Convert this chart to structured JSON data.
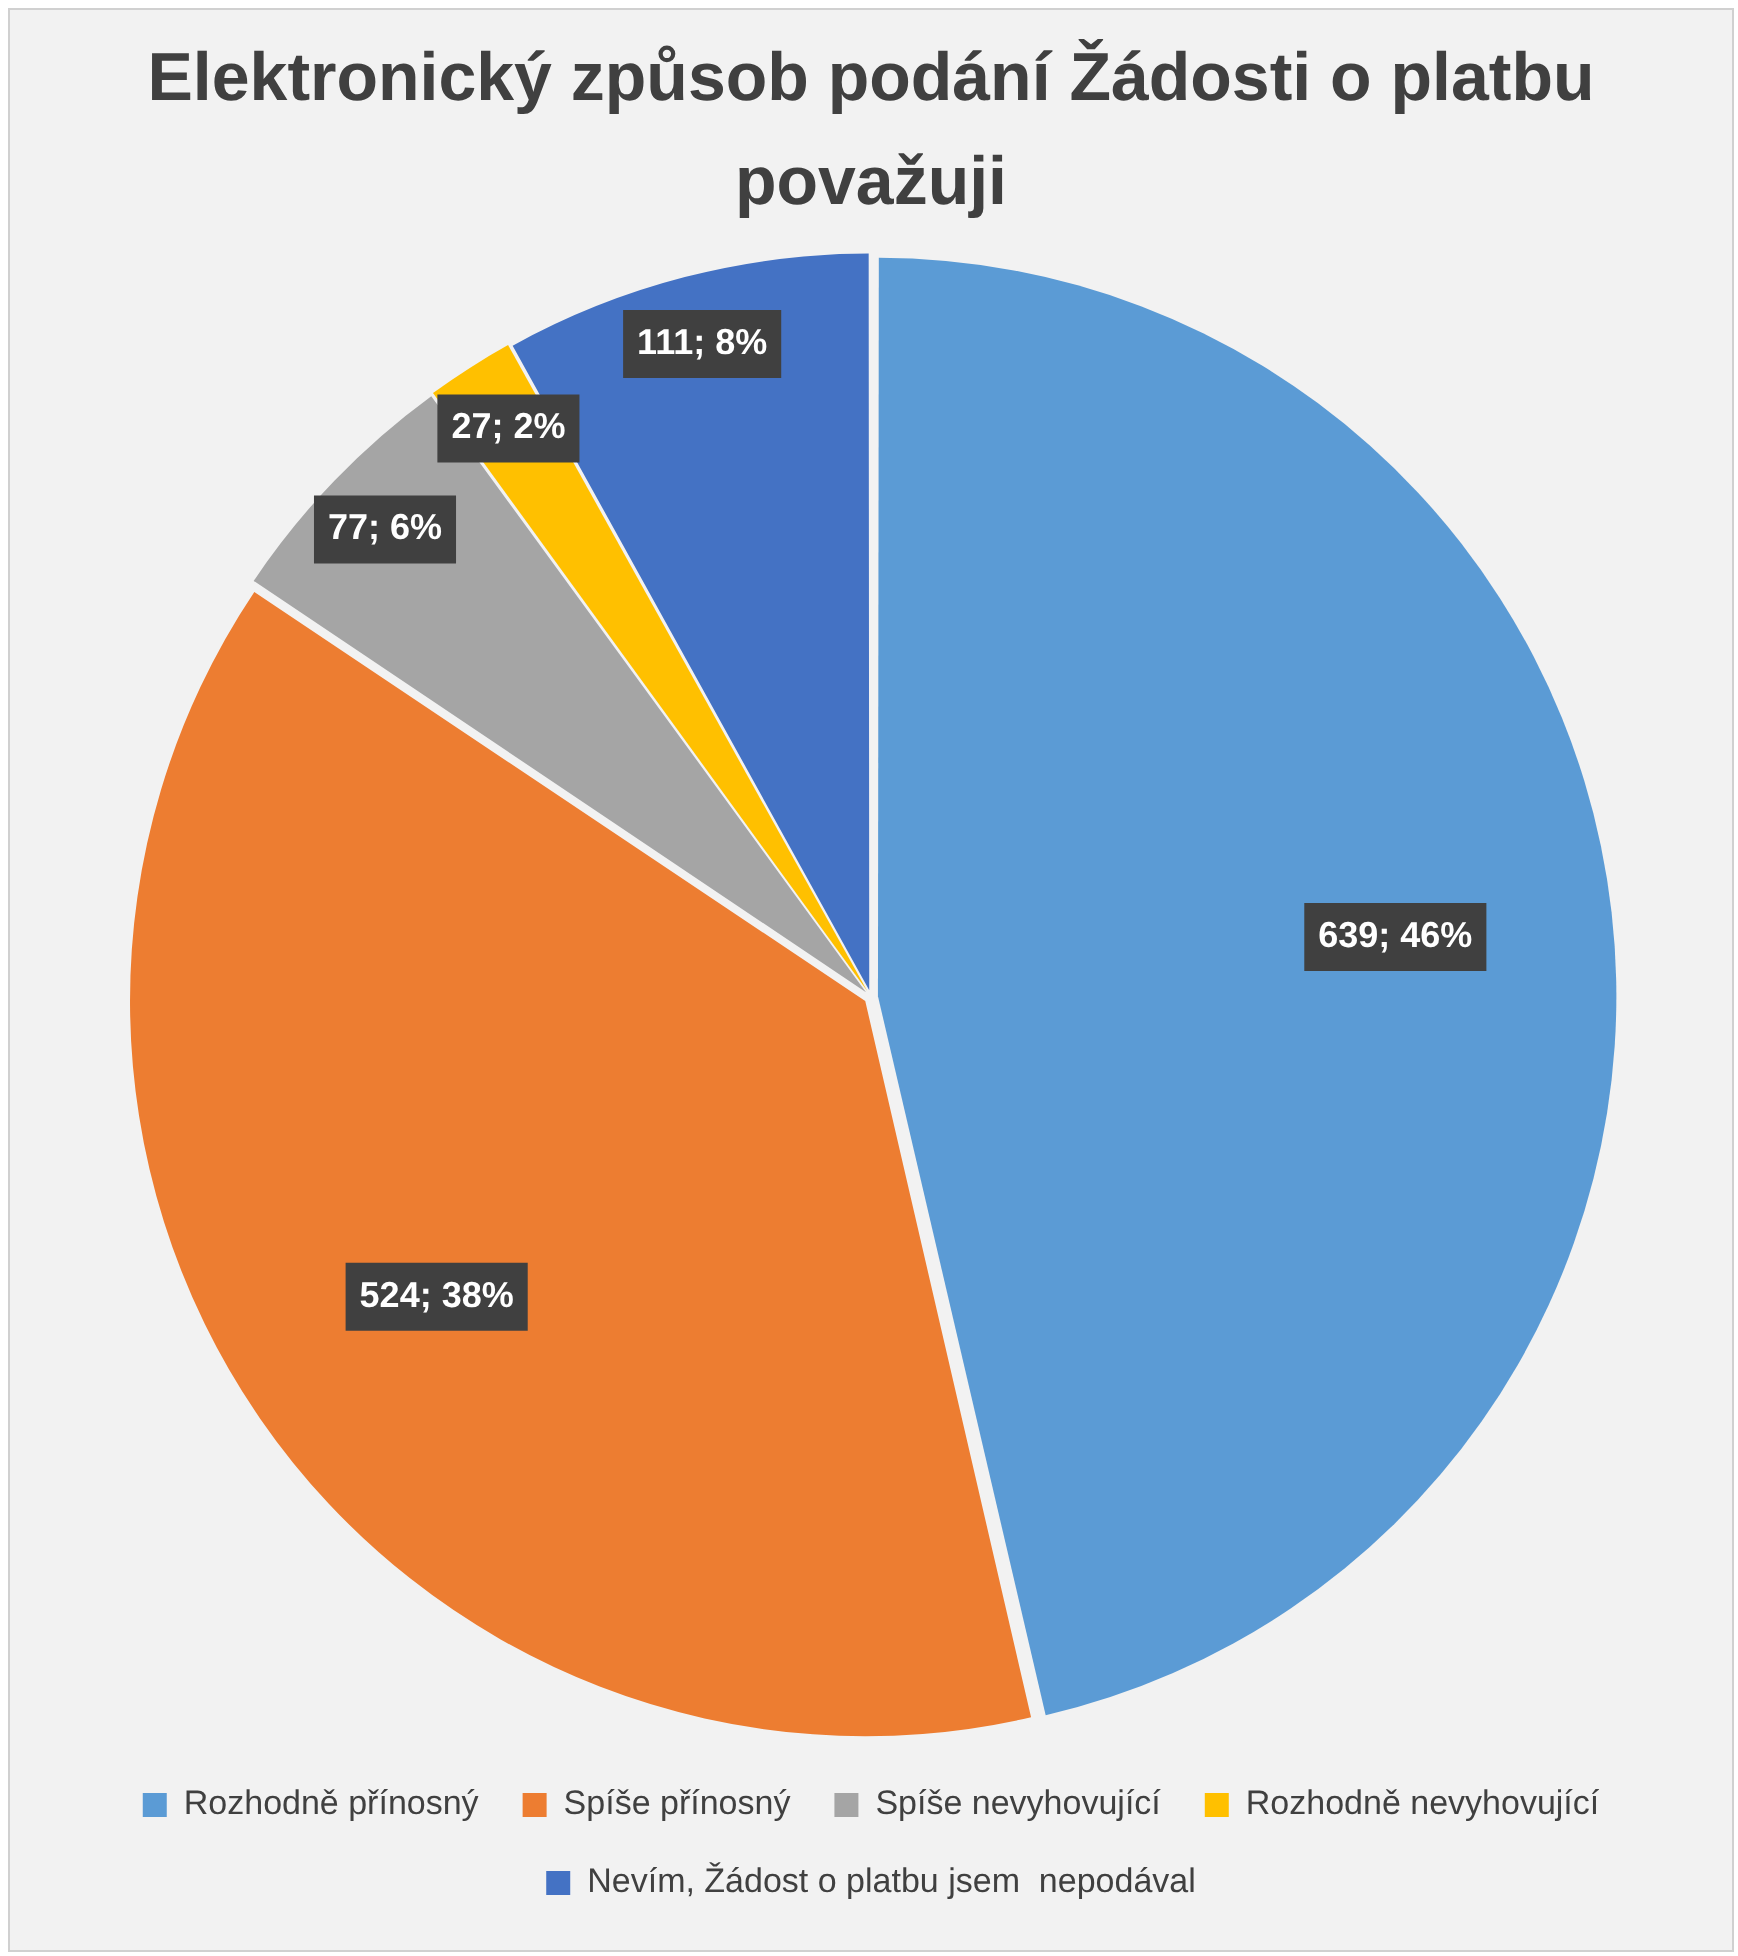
{
  "chart_data": {
    "type": "pie",
    "title": "Elektronický způsob podání Žádosti o platbu považuji",
    "categories": [
      "Rozhodně přínosný",
      "Spíše přínosný",
      "Spíše nevyhovující",
      "Rozhodně nevyhovující",
      "Nevím, Žádost o platbu jsem  nepodával"
    ],
    "values": [
      639,
      524,
      77,
      27,
      111
    ],
    "colors": [
      "#5b9bd5",
      "#ed7d31",
      "#a5a5a5",
      "#ffc000",
      "#4472c4"
    ],
    "value_labels": [
      "639; 46%",
      "524; 38%",
      "77; 6%",
      "27; 2%",
      "111; 8%"
    ],
    "legend": "bottom"
  }
}
